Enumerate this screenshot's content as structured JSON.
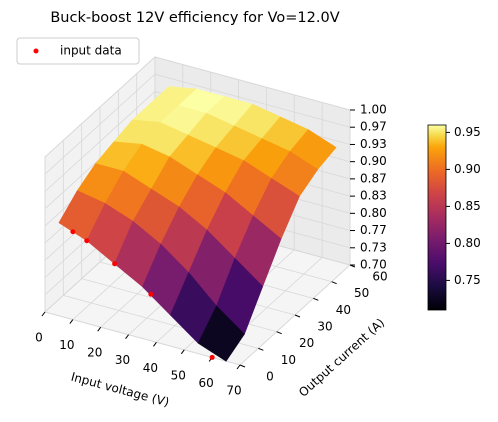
{
  "chart_data": {
    "type": "surface3d",
    "title": "Buck-boost 12V efficiency for Vo=12.0V",
    "xlabel": "Input voltage (V)",
    "ylabel": "Output current (A)",
    "x": [
      5,
      15,
      25,
      35,
      45,
      55,
      65
    ],
    "y": [
      0,
      10,
      20,
      30,
      40,
      50,
      60
    ],
    "z": [
      [
        0.88,
        0.86,
        0.83,
        0.8,
        0.76,
        0.72,
        0.7
      ],
      [
        0.91,
        0.9,
        0.88,
        0.85,
        0.81,
        0.76,
        0.72
      ],
      [
        0.93,
        0.93,
        0.91,
        0.89,
        0.86,
        0.82,
        0.78
      ],
      [
        0.94,
        0.95,
        0.94,
        0.92,
        0.9,
        0.87,
        0.84
      ],
      [
        0.95,
        0.96,
        0.95,
        0.94,
        0.93,
        0.91,
        0.89
      ],
      [
        0.95,
        0.96,
        0.96,
        0.95,
        0.94,
        0.93,
        0.91
      ],
      [
        0.95,
        0.96,
        0.96,
        0.96,
        0.95,
        0.94,
        0.92
      ]
    ],
    "colormap": "inferno",
    "clim": [
      0.71,
      0.96
    ],
    "scatter": {
      "name": "input data",
      "color": "#ff0000",
      "x": [
        10,
        15,
        25,
        38,
        60
      ],
      "y": [
        0,
        0,
        0,
        0,
        0
      ],
      "z": [
        0.87,
        0.86,
        0.83,
        0.79,
        0.7
      ]
    },
    "xlim": [
      0,
      70
    ],
    "ylim": [
      0,
      60
    ],
    "zlim": [
      0.7,
      1.0
    ],
    "xticks": [
      0,
      10,
      20,
      30,
      40,
      50,
      60,
      70
    ],
    "yticks": [
      0,
      10,
      20,
      30,
      40,
      50,
      60
    ],
    "zticks": [
      {
        "value": 0.7,
        "label": "0.70"
      },
      {
        "value": 0.7333,
        "label": "0.73"
      },
      {
        "value": 0.7667,
        "label": "0.77"
      },
      {
        "value": 0.8,
        "label": "0.80"
      },
      {
        "value": 0.8333,
        "label": "0.83"
      },
      {
        "value": 0.8667,
        "label": "0.87"
      },
      {
        "value": 0.9,
        "label": "0.90"
      },
      {
        "value": 0.9333,
        "label": "0.93"
      },
      {
        "value": 0.9667,
        "label": "0.97"
      },
      {
        "value": 1.0,
        "label": "1.00"
      }
    ],
    "cticks": [
      {
        "value": 0.75,
        "label": "0.75"
      },
      {
        "value": 0.8,
        "label": "0.80"
      },
      {
        "value": 0.85,
        "label": "0.85"
      },
      {
        "value": 0.9,
        "label": "0.90"
      },
      {
        "value": 0.95,
        "label": "0.95"
      }
    ],
    "legend": "upper left",
    "grid": true
  }
}
